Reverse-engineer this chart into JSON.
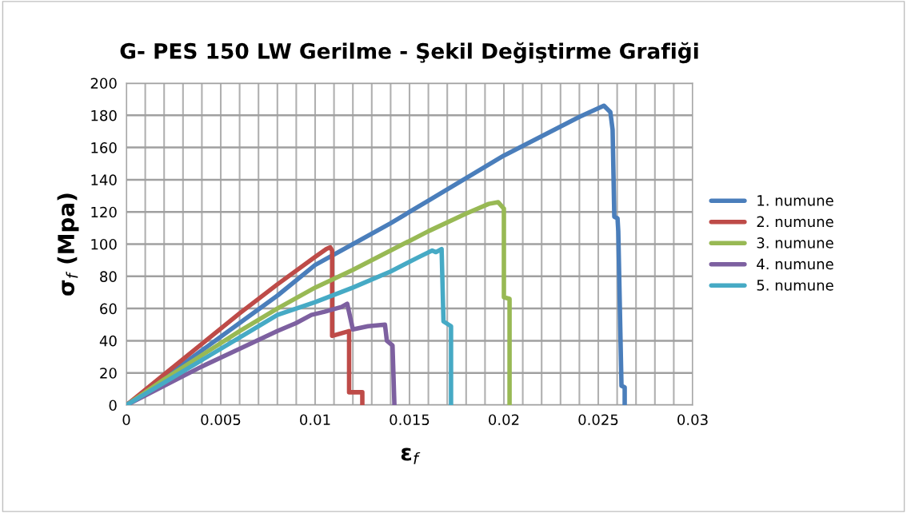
{
  "chart_data": {
    "type": "line",
    "title": "G- PES 150 LW Gerilme - Şekil Değiştirme Grafiği",
    "xlabel": "ε$_{f}$",
    "ylabel": "σ$_{f}$ (Mpa)",
    "xlim": [
      0,
      0.03
    ],
    "xticks": [
      0,
      0.005,
      0.01,
      0.015,
      0.02,
      0.025,
      0.03
    ],
    "ylim": [
      0,
      200
    ],
    "yticks": [
      0,
      20,
      40,
      60,
      80,
      100,
      120,
      140,
      160,
      180,
      200
    ],
    "grid": true,
    "legend": "right",
    "marker": "none",
    "line_style": "solid",
    "series": [
      {
        "name": "1. numune",
        "color": "#4a7ebb",
        "x": [
          0,
          0.002,
          0.004,
          0.006,
          0.008,
          0.01,
          0.012,
          0.014,
          0.016,
          0.018,
          0.02,
          0.022,
          0.024,
          0.0253,
          0.02564,
          0.02576,
          0.02585,
          0.02602,
          0.02606,
          0.02623,
          0.0264,
          0.0264
        ],
        "values": [
          0,
          17,
          34,
          51,
          68,
          87,
          100,
          113,
          127,
          141,
          155,
          167,
          179,
          186,
          182,
          171,
          117,
          116,
          108,
          12,
          11,
          0
        ]
      },
      {
        "name": "2. numune",
        "color": "#be4b48",
        "x": [
          0,
          0.002,
          0.004,
          0.006,
          0.008,
          0.01,
          0.0106,
          0.0108,
          0.0109,
          0.0109,
          0.0118,
          0.0118,
          0.0125,
          0.0125
        ],
        "values": [
          0,
          19,
          38,
          57,
          75,
          92,
          97,
          98,
          96,
          43,
          46,
          8,
          8,
          0
        ]
      },
      {
        "name": "3. numune",
        "color": "#98b954",
        "x": [
          0,
          0.002,
          0.004,
          0.006,
          0.008,
          0.01,
          0.012,
          0.014,
          0.016,
          0.018,
          0.0192,
          0.0197,
          0.02,
          0.02,
          0.0203,
          0.0203
        ],
        "values": [
          0,
          16,
          31,
          46,
          60,
          73,
          84,
          96,
          108,
          119,
          125,
          126,
          122,
          67,
          66,
          0
        ]
      },
      {
        "name": "4. numune",
        "color": "#7d60a0",
        "x": [
          0,
          0.002,
          0.004,
          0.006,
          0.008,
          0.009,
          0.0098,
          0.0105,
          0.0114,
          0.0117,
          0.012,
          0.0128,
          0.0137,
          0.0138,
          0.0141,
          0.0142
        ],
        "values": [
          0,
          12,
          24,
          35,
          46,
          51,
          56,
          58,
          61,
          63,
          47,
          49,
          50,
          40,
          37,
          0
        ]
      },
      {
        "name": "5. numune",
        "color": "#46aac5",
        "x": [
          0,
          0.002,
          0.004,
          0.006,
          0.008,
          0.01,
          0.012,
          0.014,
          0.0155,
          0.0162,
          0.0164,
          0.0167,
          0.0168,
          0.0172,
          0.0172
        ],
        "values": [
          0,
          14,
          28,
          42,
          56,
          64,
          73,
          83,
          92,
          96,
          95,
          97,
          52,
          49,
          0
        ]
      }
    ]
  }
}
